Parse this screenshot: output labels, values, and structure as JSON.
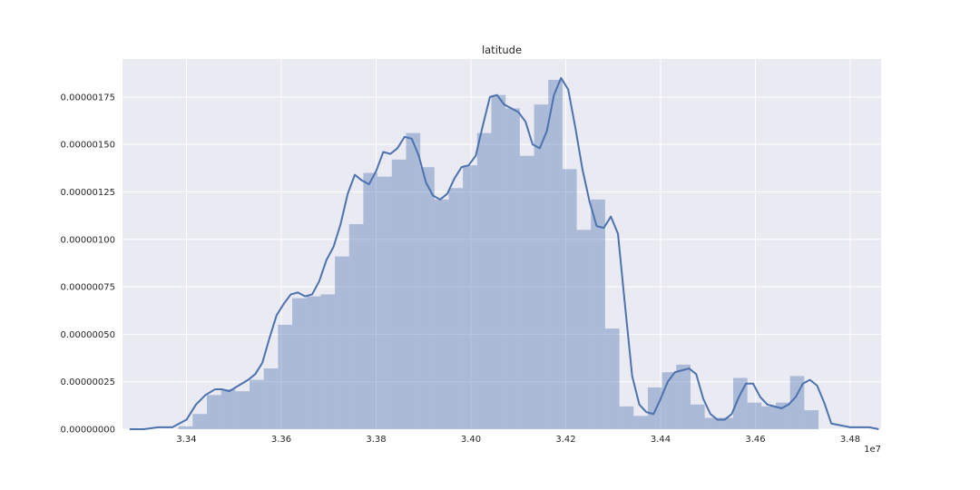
{
  "chart_data": {
    "type": "bar",
    "title": "latitude",
    "xlabel": "",
    "ylabel": "",
    "x_offset_label": "1e7",
    "xlim": [
      3.3265,
      3.4865
    ],
    "ylim": [
      0,
      1.95e-06
    ],
    "grid": true,
    "x_ticks": [
      3.34,
      3.36,
      3.38,
      3.4,
      3.42,
      3.44,
      3.46,
      3.48
    ],
    "x_tick_labels": [
      "3.34",
      "3.36",
      "3.38",
      "3.40",
      "3.42",
      "3.44",
      "3.46",
      "3.48"
    ],
    "y_ticks": [
      0,
      2.5e-07,
      5e-07,
      7.5e-07,
      1e-06,
      1.25e-06,
      1.5e-06,
      1.75e-06
    ],
    "y_tick_labels": [
      "0.00000000",
      "0.00000025",
      "0.00000050",
      "0.00000075",
      "0.00000100",
      "0.00000125",
      "0.00000150",
      "0.00000175"
    ],
    "histogram": {
      "bin_edges": [
        3.3383,
        3.3413,
        3.3443,
        3.3473,
        3.3503,
        3.3533,
        3.3563,
        3.3593,
        3.3623,
        3.3653,
        3.3683,
        3.3713,
        3.3743,
        3.3773,
        3.3803,
        3.3833,
        3.3863,
        3.3893,
        3.3923,
        3.3953,
        3.3983,
        3.4013,
        3.4043,
        3.4073,
        3.4103,
        3.4133,
        3.4163,
        3.4193,
        3.4223,
        3.4253,
        3.4283,
        3.4313,
        3.4343,
        3.4373,
        3.4403,
        3.4433,
        3.4463,
        3.4493,
        3.4523,
        3.4553,
        3.4583,
        3.4613,
        3.4643,
        3.4673,
        3.4703,
        3.4733
      ],
      "density": [
        1.5e-08,
        8e-08,
        1.8e-07,
        2.1e-07,
        2e-07,
        2.6e-07,
        3.2e-07,
        5.5e-07,
        6.9e-07,
        7e-07,
        7.1e-07,
        9.1e-07,
        1.08e-06,
        1.35e-06,
        1.33e-06,
        1.42e-06,
        1.56e-06,
        1.38e-06,
        1.21e-06,
        1.27e-06,
        1.39e-06,
        1.56e-06,
        1.76e-06,
        1.69e-06,
        1.44e-06,
        1.71e-06,
        1.84e-06,
        1.37e-06,
        1.05e-06,
        1.21e-06,
        5.3e-07,
        1.2e-07,
        7e-08,
        2.2e-07,
        3e-07,
        3.4e-07,
        1.3e-07,
        6e-08,
        6e-08,
        2.7e-07,
        1.4e-07,
        1.2e-07,
        1.4e-07,
        2.8e-07,
        1e-07
      ]
    },
    "series": [
      {
        "kind": "kde-line",
        "x": [
          3.328,
          3.331,
          3.334,
          3.337,
          3.34,
          3.342,
          3.344,
          3.346,
          3.3475,
          3.349,
          3.351,
          3.353,
          3.3545,
          3.356,
          3.3575,
          3.359,
          3.3605,
          3.362,
          3.3635,
          3.365,
          3.3665,
          3.368,
          3.3695,
          3.371,
          3.3725,
          3.374,
          3.3755,
          3.377,
          3.3785,
          3.38,
          3.3815,
          3.383,
          3.3845,
          3.386,
          3.3875,
          3.389,
          3.3905,
          3.392,
          3.3935,
          3.395,
          3.3965,
          3.398,
          3.3995,
          3.401,
          3.4025,
          3.404,
          3.4055,
          3.407,
          3.4085,
          3.41,
          3.4115,
          3.413,
          3.4145,
          3.416,
          3.4175,
          3.419,
          3.4205,
          3.422,
          3.4235,
          3.425,
          3.4265,
          3.428,
          3.4295,
          3.431,
          3.4325,
          3.434,
          3.4355,
          3.437,
          3.4385,
          3.44,
          3.4415,
          3.443,
          3.4445,
          3.446,
          3.4475,
          3.449,
          3.4505,
          3.452,
          3.4535,
          3.455,
          3.4565,
          3.458,
          3.4595,
          3.461,
          3.4625,
          3.464,
          3.4655,
          3.467,
          3.4685,
          3.47,
          3.4715,
          3.473,
          3.4745,
          3.476,
          3.48,
          3.484,
          3.486
        ],
        "y": [
          0,
          0,
          1e-08,
          1e-08,
          5e-08,
          1.3e-07,
          1.8e-07,
          2.1e-07,
          2.1e-07,
          2e-07,
          2.3e-07,
          2.6e-07,
          2.9e-07,
          3.5e-07,
          4.8e-07,
          6e-07,
          6.6e-07,
          7.1e-07,
          7.2e-07,
          7e-07,
          7.1e-07,
          7.8e-07,
          8.9e-07,
          9.6e-07,
          1.08e-06,
          1.24e-06,
          1.34e-06,
          1.31e-06,
          1.29e-06,
          1.36e-06,
          1.46e-06,
          1.45e-06,
          1.48e-06,
          1.54e-06,
          1.53e-06,
          1.44e-06,
          1.3e-06,
          1.23e-06,
          1.21e-06,
          1.24e-06,
          1.32e-06,
          1.38e-06,
          1.39e-06,
          1.44e-06,
          1.6e-06,
          1.75e-06,
          1.76e-06,
          1.71e-06,
          1.69e-06,
          1.67e-06,
          1.62e-06,
          1.5e-06,
          1.48e-06,
          1.57e-06,
          1.76e-06,
          1.85e-06,
          1.79e-06,
          1.59e-06,
          1.37e-06,
          1.2e-06,
          1.07e-06,
          1.06e-06,
          1.12e-06,
          1.03e-06,
          6.5e-07,
          2.8e-07,
          1.3e-07,
          9e-08,
          8e-08,
          1.6e-07,
          2.5e-07,
          3e-07,
          3.1e-07,
          3.2e-07,
          2.9e-07,
          1.6e-07,
          8e-08,
          5e-08,
          5e-08,
          8e-08,
          1.7e-07,
          2.4e-07,
          2.4e-07,
          1.7e-07,
          1.3e-07,
          1.2e-07,
          1.1e-07,
          1.3e-07,
          1.7e-07,
          2.4e-07,
          2.6e-07,
          2.3e-07,
          1.4e-07,
          3e-08,
          1e-08,
          1e-08,
          0
        ]
      }
    ]
  }
}
